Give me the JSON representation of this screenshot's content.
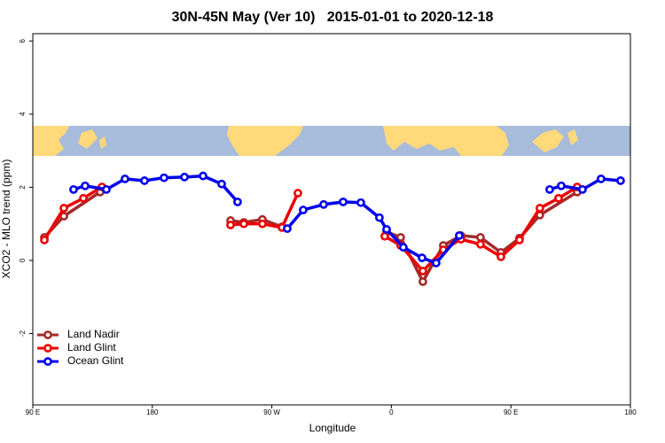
{
  "chart_data": {
    "type": "line",
    "title": "30N-45N May (Ver 10)   2015-01-01 to 2020-12-18",
    "x_label": "Longitude",
    "y_label": "XCO2 - MLO trend (ppm)",
    "xlim": [
      90,
      540
    ],
    "ylim": [
      -3.95,
      6.2
    ],
    "xticks": [
      {
        "value": 90,
        "label": "90 E"
      },
      180,
      {
        "value": 270,
        "label": "90 W"
      },
      {
        "value": 360,
        "label": "0"
      },
      {
        "value": 450,
        "label": "90 E"
      },
      {
        "value": 540,
        "label": "180"
      }
    ],
    "yticks": [
      -2,
      0,
      2,
      4,
      6
    ],
    "legend_position": "bottomleft",
    "series": [
      {
        "name": "Land Nadir",
        "color": "#a52a2a",
        "x": [
          98.7,
          113.4,
          140.7,
          null,
          238.9,
          248.9,
          262.9,
          277.6,
          null,
          356.4,
          367.0,
          383.7,
          399.1,
          412.4,
          427.1,
          442.5,
          456.5,
          471.8,
          499.9
        ],
        "values": [
          0.63,
          1.21,
          1.87,
          null,
          1.09,
          1.04,
          1.12,
          0.92,
          null,
          0.78,
          0.63,
          -0.58,
          0.41,
          0.68,
          0.63,
          0.22,
          0.61,
          1.24,
          1.87
        ]
      },
      {
        "name": "Land Glint",
        "color": "#ee0000",
        "x": [
          98.7,
          113.4,
          128.1,
          142.1,
          null,
          238.9,
          248.9,
          262.9,
          277.6,
          289.6,
          null,
          355.0,
          367.0,
          383.7,
          399.1,
          412.4,
          427.1,
          442.5,
          456.5,
          471.8,
          485.9,
          499.9
        ],
        "values": [
          0.56,
          1.43,
          1.7,
          2.01,
          null,
          0.97,
          1.0,
          1.0,
          0.9,
          1.84,
          null,
          0.66,
          0.41,
          -0.29,
          0.29,
          0.58,
          0.44,
          0.1,
          0.56,
          1.43,
          1.7,
          2.01
        ]
      },
      {
        "name": "Ocean Glint",
        "color": "#0000ee",
        "x": [
          120.7,
          129.4,
          145.4,
          159.4,
          174.1,
          188.8,
          204.2,
          218.2,
          232.2,
          244.2,
          null,
          281.6,
          293.6,
          309.0,
          323.7,
          337.0,
          351.0,
          356.4,
          369.0,
          383.1,
          393.7,
          411.1,
          null,
          479.2,
          487.9,
          503.9,
          517.9,
          532.6
        ],
        "values": [
          1.94,
          2.04,
          1.94,
          2.23,
          2.18,
          2.26,
          2.28,
          2.31,
          2.09,
          1.6,
          null,
          0.87,
          1.38,
          1.53,
          1.6,
          1.58,
          1.17,
          0.85,
          0.36,
          0.07,
          -0.07,
          0.68,
          null,
          1.94,
          2.04,
          1.94,
          2.23,
          2.18
        ]
      }
    ]
  }
}
